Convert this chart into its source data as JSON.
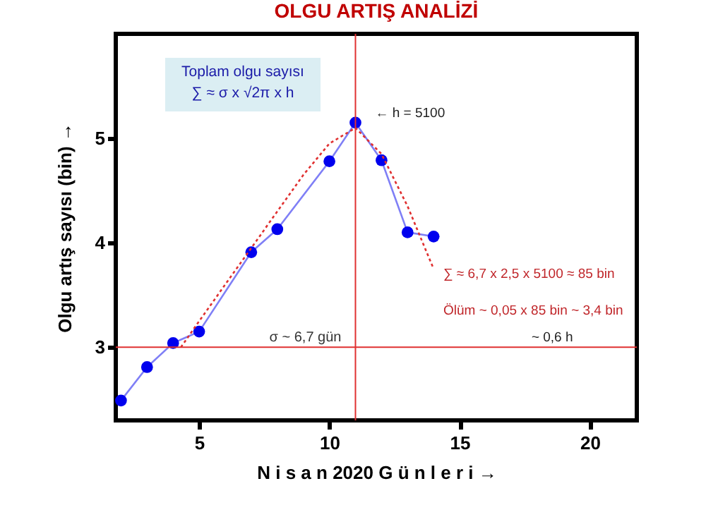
{
  "chart_data": {
    "type": "line",
    "title": "OLGU  ARTIŞ  ANALİZİ",
    "xlabel": "N i s a n 2020  G ü n l e r i  →",
    "ylabel": "Olgu  artış sayısı (bin) →",
    "xlim": [
      1.8,
      21.8
    ],
    "ylim": [
      2.3,
      6
    ],
    "xticks": [
      5,
      10,
      15,
      20
    ],
    "yticks": [
      3,
      4,
      5
    ],
    "grid": false,
    "series": [
      {
        "color": "#0000ee",
        "marker": "circle",
        "line_style": "solid",
        "x": [
          2,
          3,
          4,
          5,
          7,
          8,
          10,
          11,
          12,
          13,
          14
        ],
        "values": [
          2.49,
          2.81,
          3.04,
          3.15,
          3.91,
          4.13,
          4.78,
          5.15,
          4.79,
          4.1,
          4.06
        ]
      },
      {
        "color": "#e03030",
        "marker": "none",
        "line_style": "dotted",
        "x": [
          4.3,
          5,
          6,
          7,
          8,
          9,
          10,
          11,
          12,
          13,
          14
        ],
        "values": [
          3.0,
          3.25,
          3.6,
          3.95,
          4.3,
          4.65,
          4.95,
          5.1,
          4.85,
          4.35,
          3.75
        ]
      }
    ],
    "ref_lines": [
      {
        "axis": "y",
        "value": 3,
        "label": "σ ~ 6,7 gün",
        "color": "#e03030"
      },
      {
        "axis": "x",
        "value": 11,
        "color": "#e03030"
      }
    ],
    "annotations": [
      "Toplam olgu  sayısı\n∑ ≈ σ x √2π x h",
      {
        "text": "←  h = 5100",
        "x": 11,
        "y": 5.15
      },
      "∑ ≈ 6,7 x 2,5 x 5100 ≈  85 bin",
      "Ölüm ~ 0,05 x 85 bin ~ 3,4 bin",
      {
        "text": "~ 0,6 h",
        "x": 17,
        "y": 3
      }
    ]
  }
}
